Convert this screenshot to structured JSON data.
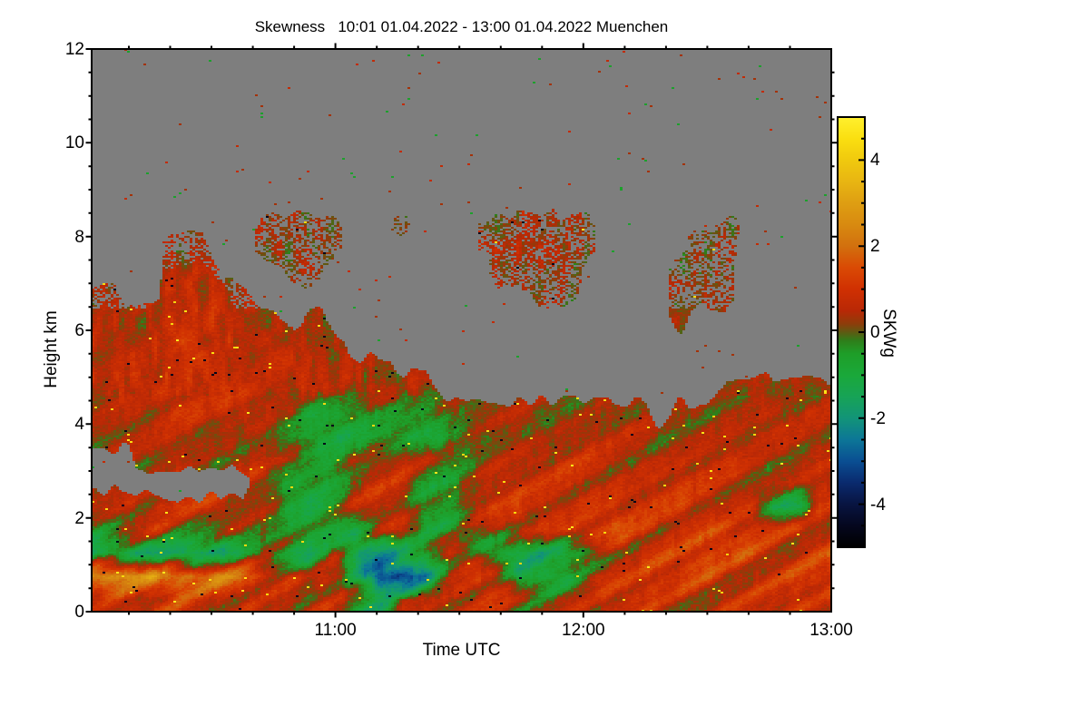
{
  "figure": {
    "background": "#FFFFFF"
  },
  "chart": {
    "title": "Skewness   10:01 01.04.2022 - 13:00 01.04.2022 Muenchen",
    "xlabel": "Time UTC",
    "ylabel": "Height km",
    "colorbar_label": "SKWg"
  },
  "chart_data": {
    "type": "heatmap",
    "title": "Skewness   10:01 01.04.2022 - 13:00 01.04.2022 Muenchen",
    "xlabel": "Time UTC",
    "ylabel": "Height km",
    "x_axis": {
      "range_hours": [
        10.0167,
        13.0
      ],
      "major_ticks": [
        {
          "hour": 11,
          "label": "11:00"
        },
        {
          "hour": 12,
          "label": "12:00"
        },
        {
          "hour": 13,
          "label": "13:00"
        }
      ],
      "minor_tick_interval_hours": 0.166667
    },
    "y_axis": {
      "range_km": [
        0,
        12
      ],
      "major_ticks": [
        0,
        2,
        4,
        6,
        8,
        10,
        12
      ],
      "minor_tick_interval_km": 0.5
    },
    "colorbar": {
      "label": "SKWg",
      "range": [
        -5,
        5
      ],
      "major_ticks": [
        -4,
        -2,
        0,
        2,
        4
      ],
      "minor_tick_interval": 0.5,
      "colormap_stops": [
        [
          -5.0,
          "#000000"
        ],
        [
          -4.5,
          "#05071E"
        ],
        [
          -4.0,
          "#081441"
        ],
        [
          -3.5,
          "#0A2A6E"
        ],
        [
          -3.0,
          "#0A4E92"
        ],
        [
          -2.5,
          "#0C7697"
        ],
        [
          -2.0,
          "#129478"
        ],
        [
          -1.5,
          "#17A356"
        ],
        [
          -1.0,
          "#1AA83A"
        ],
        [
          -0.5,
          "#1E9E28"
        ],
        [
          -0.2,
          "#2E7E1A"
        ],
        [
          0.0,
          "#5E5A12"
        ],
        [
          0.2,
          "#8E3C0A"
        ],
        [
          0.5,
          "#B82806"
        ],
        [
          1.0,
          "#D03002"
        ],
        [
          1.5,
          "#DA4A04"
        ],
        [
          2.0,
          "#D2700E"
        ],
        [
          2.5,
          "#D88A10"
        ],
        [
          3.0,
          "#DE9E12"
        ],
        [
          3.5,
          "#E8B512"
        ],
        [
          4.0,
          "#F0C90E"
        ],
        [
          4.5,
          "#FADF10"
        ],
        [
          5.0,
          "#FFF02E"
        ]
      ]
    },
    "no_data_color": "#7E7E7E",
    "grid": {
      "comment": "Mean skewness SKWg on a 32 col x 24 row grid; cols span 10:01-13:00 UTC left to right, rows span 12 km (top) to 0 km (bottom), 0.5 km per row; null = no data (gray)",
      "cols": 32,
      "rows": 24,
      "values": [
        [
          null,
          null,
          null,
          null,
          null,
          null,
          null,
          null,
          null,
          null,
          null,
          null,
          null,
          null,
          null,
          null,
          null,
          null,
          null,
          null,
          null,
          null,
          null,
          null,
          null,
          null,
          null,
          null,
          null,
          null,
          null,
          null
        ],
        [
          null,
          null,
          null,
          null,
          null,
          null,
          null,
          null,
          null,
          null,
          null,
          null,
          null,
          null,
          null,
          null,
          null,
          null,
          null,
          null,
          null,
          null,
          null,
          null,
          null,
          null,
          null,
          null,
          null,
          null,
          null,
          null
        ],
        [
          null,
          null,
          null,
          null,
          null,
          null,
          null,
          null,
          null,
          null,
          null,
          null,
          null,
          null,
          null,
          null,
          null,
          null,
          null,
          null,
          null,
          null,
          null,
          null,
          null,
          null,
          null,
          null,
          null,
          null,
          null,
          null
        ],
        [
          null,
          null,
          null,
          null,
          null,
          null,
          null,
          null,
          null,
          null,
          null,
          null,
          null,
          null,
          null,
          null,
          null,
          null,
          null,
          null,
          null,
          null,
          null,
          null,
          null,
          null,
          null,
          null,
          null,
          null,
          null,
          null
        ],
        [
          null,
          null,
          null,
          null,
          null,
          null,
          null,
          null,
          null,
          null,
          null,
          null,
          null,
          null,
          null,
          null,
          null,
          null,
          null,
          null,
          null,
          null,
          null,
          null,
          null,
          null,
          null,
          null,
          null,
          null,
          null,
          null
        ],
        [
          null,
          null,
          null,
          null,
          null,
          null,
          null,
          null,
          null,
          null,
          null,
          null,
          null,
          null,
          null,
          null,
          null,
          null,
          null,
          null,
          null,
          null,
          null,
          null,
          null,
          null,
          null,
          null,
          null,
          null,
          null,
          null
        ],
        [
          null,
          null,
          null,
          null,
          null,
          null,
          null,
          null,
          null,
          null,
          null,
          null,
          null,
          null,
          null,
          null,
          null,
          null,
          null,
          null,
          null,
          null,
          null,
          null,
          null,
          null,
          null,
          null,
          null,
          null,
          null,
          null
        ],
        [
          null,
          null,
          null,
          null,
          null,
          null,
          null,
          0.3,
          0.3,
          0.3,
          0.2,
          null,
          null,
          0.2,
          null,
          null,
          null,
          0.3,
          0.4,
          0.4,
          0.3,
          0.3,
          null,
          null,
          null,
          null,
          null,
          0.2,
          null,
          null,
          null,
          null
        ],
        [
          null,
          null,
          null,
          0.2,
          0.3,
          null,
          null,
          0.4,
          0.4,
          0.3,
          0.2,
          null,
          null,
          null,
          null,
          null,
          null,
          0.4,
          0.5,
          0.4,
          0.4,
          0.3,
          null,
          null,
          null,
          null,
          0.2,
          0.3,
          null,
          null,
          null,
          null
        ],
        [
          null,
          null,
          null,
          0.5,
          0.6,
          0.4,
          null,
          null,
          0.2,
          0.2,
          null,
          null,
          null,
          null,
          null,
          null,
          null,
          0.3,
          0.4,
          0.4,
          0.3,
          null,
          null,
          null,
          null,
          0.2,
          0.3,
          0.3,
          null,
          null,
          null,
          null
        ],
        [
          0.3,
          null,
          null,
          0.7,
          0.8,
          0.6,
          0.3,
          null,
          null,
          null,
          null,
          null,
          null,
          null,
          null,
          null,
          null,
          null,
          null,
          0.2,
          0.2,
          null,
          null,
          null,
          null,
          0.3,
          0.3,
          0.2,
          null,
          null,
          null,
          null
        ],
        [
          0.5,
          0.4,
          0.4,
          0.8,
          0.9,
          0.7,
          0.5,
          0.4,
          null,
          0.3,
          null,
          null,
          null,
          null,
          null,
          null,
          null,
          null,
          null,
          null,
          null,
          null,
          null,
          null,
          null,
          0.2,
          null,
          null,
          null,
          null,
          null,
          null
        ],
        [
          0.6,
          0.5,
          0.6,
          0.9,
          0.9,
          0.8,
          0.6,
          0.5,
          0.4,
          0.5,
          0.3,
          null,
          null,
          null,
          null,
          null,
          null,
          null,
          null,
          null,
          null,
          null,
          null,
          null,
          null,
          null,
          null,
          null,
          null,
          null,
          null,
          null
        ],
        [
          0.7,
          0.6,
          0.7,
          0.9,
          1.0,
          0.8,
          0.7,
          0.6,
          0.5,
          0.6,
          0.5,
          0.4,
          0.3,
          null,
          null,
          null,
          null,
          null,
          null,
          null,
          null,
          null,
          null,
          null,
          null,
          null,
          null,
          null,
          null,
          null,
          null,
          null
        ],
        [
          0.6,
          0.7,
          0.8,
          0.9,
          0.9,
          0.8,
          0.7,
          0.7,
          0.6,
          0.6,
          0.5,
          0.5,
          0.4,
          0.3,
          0.2,
          null,
          null,
          null,
          null,
          null,
          null,
          null,
          null,
          null,
          null,
          null,
          null,
          0.3,
          0.3,
          0.4,
          0.2,
          0.3
        ],
        [
          0.5,
          0.6,
          0.7,
          0.8,
          0.8,
          0.7,
          0.6,
          0.6,
          0.5,
          -0.5,
          -0.8,
          -0.6,
          -0.4,
          -0.3,
          -0.4,
          0.2,
          0.2,
          0.2,
          0.3,
          0.2,
          0.3,
          0.3,
          0.4,
          0.3,
          null,
          0.2,
          0.3,
          0.5,
          0.4,
          0.5,
          0.4,
          0.5
        ],
        [
          0.4,
          0.5,
          0.5,
          0.6,
          0.5,
          0.4,
          0.3,
          0.4,
          -0.4,
          -1.0,
          -1.2,
          -0.8,
          -0.5,
          -0.6,
          -0.8,
          -0.5,
          -0.3,
          0.3,
          0.4,
          0.3,
          0.4,
          0.5,
          0.5,
          0.4,
          0.3,
          0.4,
          0.5,
          0.6,
          0.5,
          0.6,
          0.5,
          0.6
        ],
        [
          null,
          null,
          0.3,
          0.5,
          0.4,
          0.3,
          0.4,
          0.2,
          0.1,
          -0.3,
          -0.5,
          0.2,
          0.4,
          0.6,
          0.3,
          -0.2,
          0.2,
          0.5,
          0.6,
          0.5,
          0.6,
          0.7,
          0.6,
          0.5,
          0.6,
          0.7,
          0.6,
          0.7,
          0.6,
          0.5,
          0.6,
          0.7
        ],
        [
          null,
          null,
          null,
          null,
          null,
          null,
          null,
          0.3,
          -0.4,
          -0.8,
          -0.6,
          0.3,
          0.6,
          0.4,
          -0.4,
          -0.6,
          0.3,
          0.6,
          0.7,
          0.6,
          0.7,
          0.8,
          0.7,
          0.6,
          0.7,
          0.8,
          0.7,
          0.8,
          0.7,
          0.6,
          0.5,
          0.6
        ],
        [
          0.6,
          0.7,
          0.8,
          0.8,
          0.7,
          0.6,
          0.7,
          0.5,
          -0.5,
          -1.0,
          -0.7,
          0.4,
          0.7,
          0.5,
          -0.5,
          -0.3,
          0.5,
          0.8,
          0.9,
          0.8,
          0.9,
          1.0,
          0.9,
          0.8,
          0.9,
          1.0,
          0.9,
          0.8,
          0.9,
          -1.2,
          -1.5,
          0.7
        ],
        [
          0.1,
          0.2,
          0.3,
          0.2,
          0.1,
          0.2,
          0.3,
          0.2,
          -0.6,
          -1.4,
          -0.9,
          -0.4,
          0.5,
          0.8,
          -0.6,
          -1.0,
          -0.4,
          0.6,
          0.9,
          1.0,
          0.9,
          1.0,
          1.1,
          1.0,
          0.9,
          1.0,
          1.1,
          1.0,
          0.9,
          0.8,
          0.9,
          1.0
        ],
        [
          -1.6,
          -1.7,
          -1.5,
          -1.3,
          -1.5,
          -1.4,
          -1.0,
          -0.6,
          -0.8,
          -1.0,
          0.5,
          -1.5,
          -2.0,
          -1.6,
          -1.2,
          0.6,
          0.8,
          -0.5,
          -1.3,
          -1.5,
          -1.2,
          -1.0,
          0.8,
          1.0,
          0.9,
          1.1,
          1.0,
          0.9,
          1.1,
          1.0,
          0.9,
          1.1
        ],
        [
          2.6,
          2.8,
          2.7,
          2.4,
          2.0,
          1.8,
          1.6,
          1.4,
          0.9,
          0.5,
          0.8,
          -1.2,
          -3.8,
          -3.4,
          -1.6,
          0.7,
          0.9,
          0.7,
          -1.2,
          -1.4,
          -0.8,
          0.9,
          1.0,
          0.8,
          1.0,
          0.9,
          1.1,
          1.0,
          0.9,
          1.0,
          1.1,
          0.9
        ],
        [
          0.8,
          0.9,
          0.7,
          0.8,
          0.6,
          0.7,
          0.8,
          0.6,
          0.5,
          0.4,
          0.3,
          -0.5,
          -1.0,
          0.5,
          0.6,
          0.4,
          0.5,
          0.6,
          0.4,
          0.5,
          0.6,
          0.5,
          0.6,
          0.7,
          0.6,
          0.7,
          0.8,
          0.7,
          0.6,
          0.7,
          0.8,
          0.7
        ]
      ]
    }
  }
}
